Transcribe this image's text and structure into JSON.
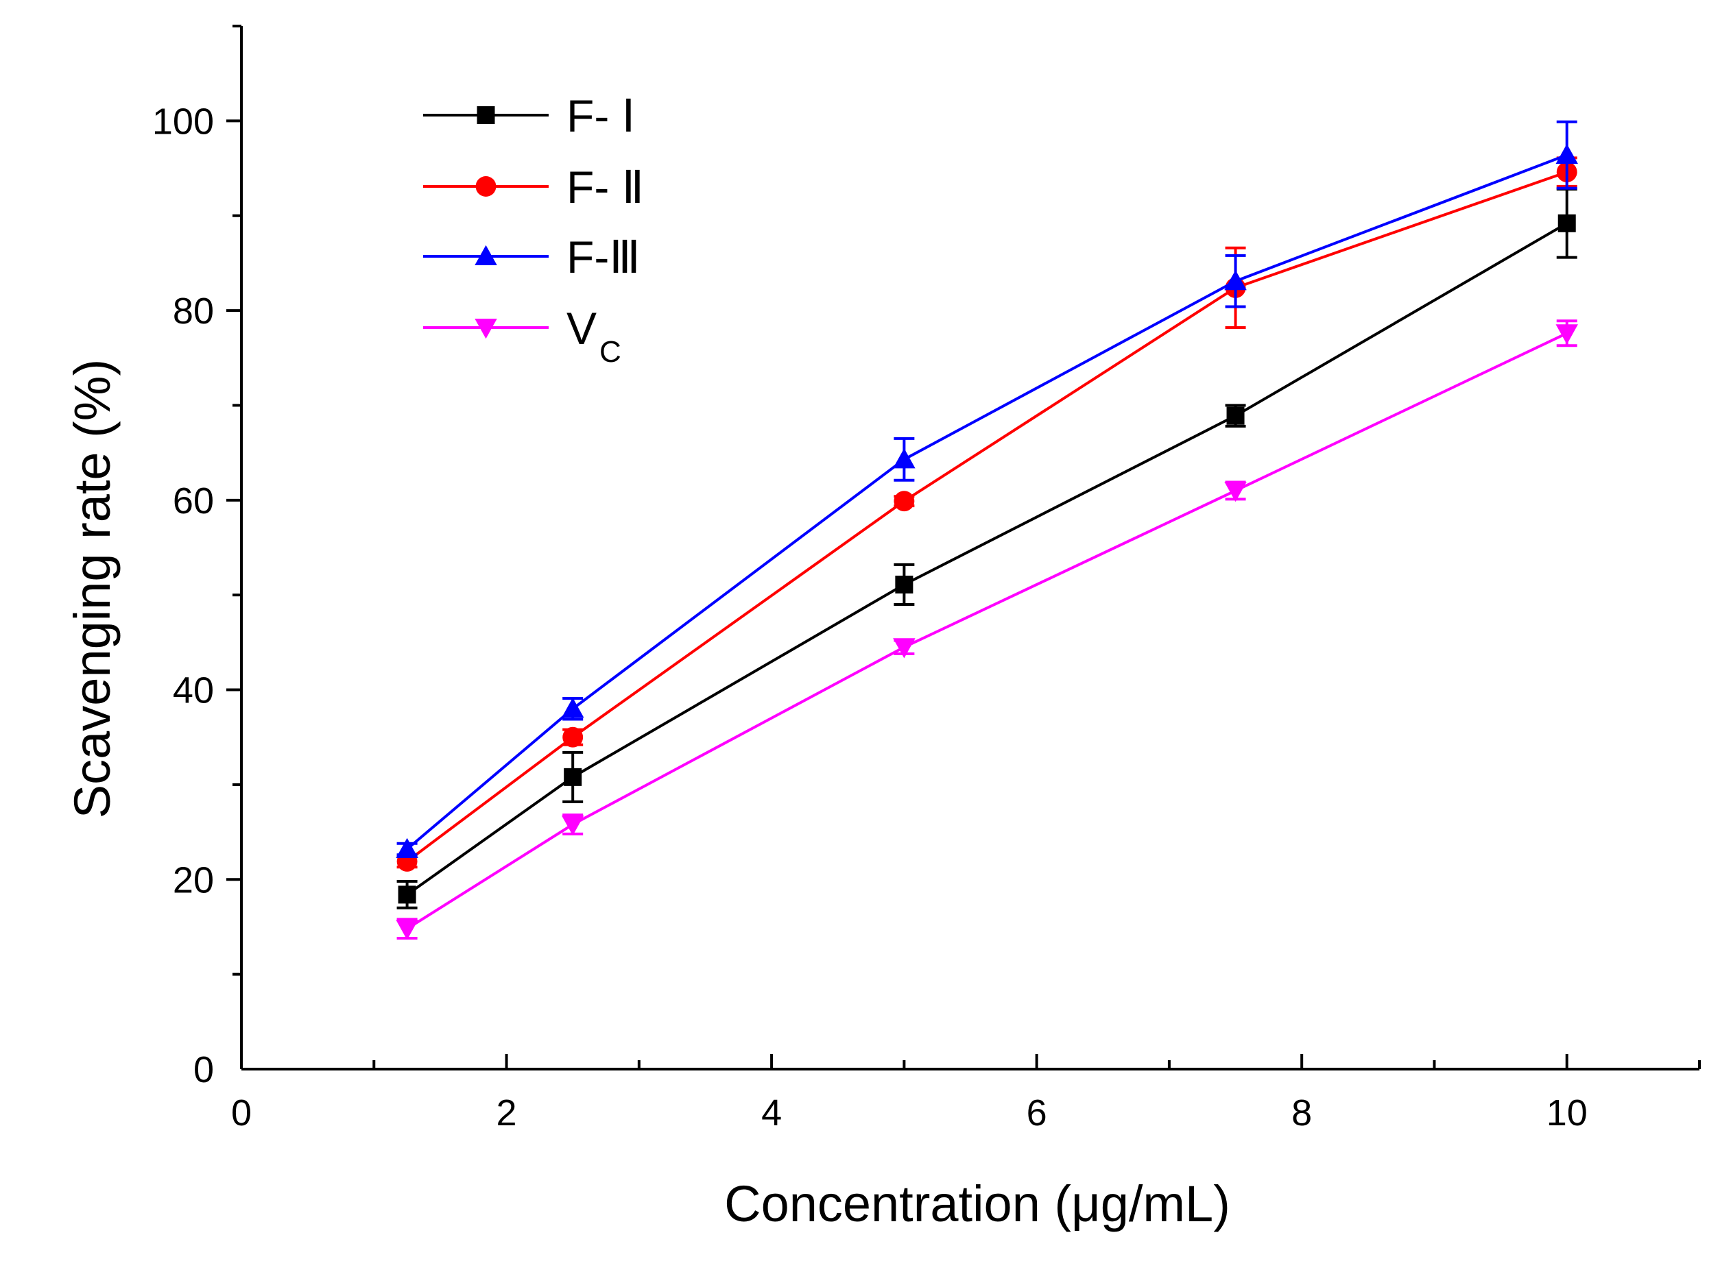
{
  "chart_data": {
    "type": "line",
    "title": "",
    "xlabel": "Concentration (μg/mL)",
    "ylabel": "Scavenging rate (%)",
    "xlim": [
      0,
      11
    ],
    "ylim": [
      0,
      110
    ],
    "x_ticks": [
      0,
      2,
      4,
      6,
      8,
      10
    ],
    "x_tick_labels": [
      "0",
      "2",
      "4",
      "6",
      "8",
      "10"
    ],
    "y_ticks": [
      0,
      20,
      40,
      60,
      80,
      100
    ],
    "y_tick_labels": [
      "0",
      "20",
      "40",
      "60",
      "80",
      "100"
    ],
    "x_minor_step": 1,
    "y_minor_step": 10,
    "grid": false,
    "legend_position": "top-left",
    "x": [
      1.25,
      2.5,
      5,
      7.5,
      10
    ],
    "series": [
      {
        "name": "F- Ⅰ",
        "legend_main": "F- Ⅰ",
        "legend_sub": "",
        "color": "#000000",
        "marker": "square",
        "values": [
          18.4,
          30.8,
          51.1,
          68.9,
          89.2
        ],
        "errors": [
          1.4,
          2.6,
          2.1,
          1.1,
          3.6
        ]
      },
      {
        "name": "F- Ⅱ",
        "legend_main": "F- Ⅱ",
        "legend_sub": "",
        "color": "#ff0000",
        "marker": "circle",
        "values": [
          21.9,
          35.0,
          59.9,
          82.4,
          94.6
        ],
        "errors": [
          0.6,
          0.8,
          0.5,
          4.2,
          1.5
        ]
      },
      {
        "name": "F-Ⅲ",
        "legend_main": "F-Ⅲ",
        "legend_sub": "",
        "color": "#0000ff",
        "marker": "triangle-up",
        "values": [
          23.2,
          38.0,
          64.3,
          83.1,
          96.4
        ],
        "errors": [
          0.6,
          1.1,
          2.2,
          2.7,
          3.5
        ]
      },
      {
        "name": "Vc",
        "legend_main": "V",
        "legend_sub": "C",
        "color": "#ff00ff",
        "marker": "triangle-down",
        "values": [
          14.8,
          25.8,
          44.5,
          61.0,
          77.6
        ],
        "errors": [
          1.0,
          1.0,
          0.7,
          0.9,
          1.3
        ]
      }
    ]
  }
}
